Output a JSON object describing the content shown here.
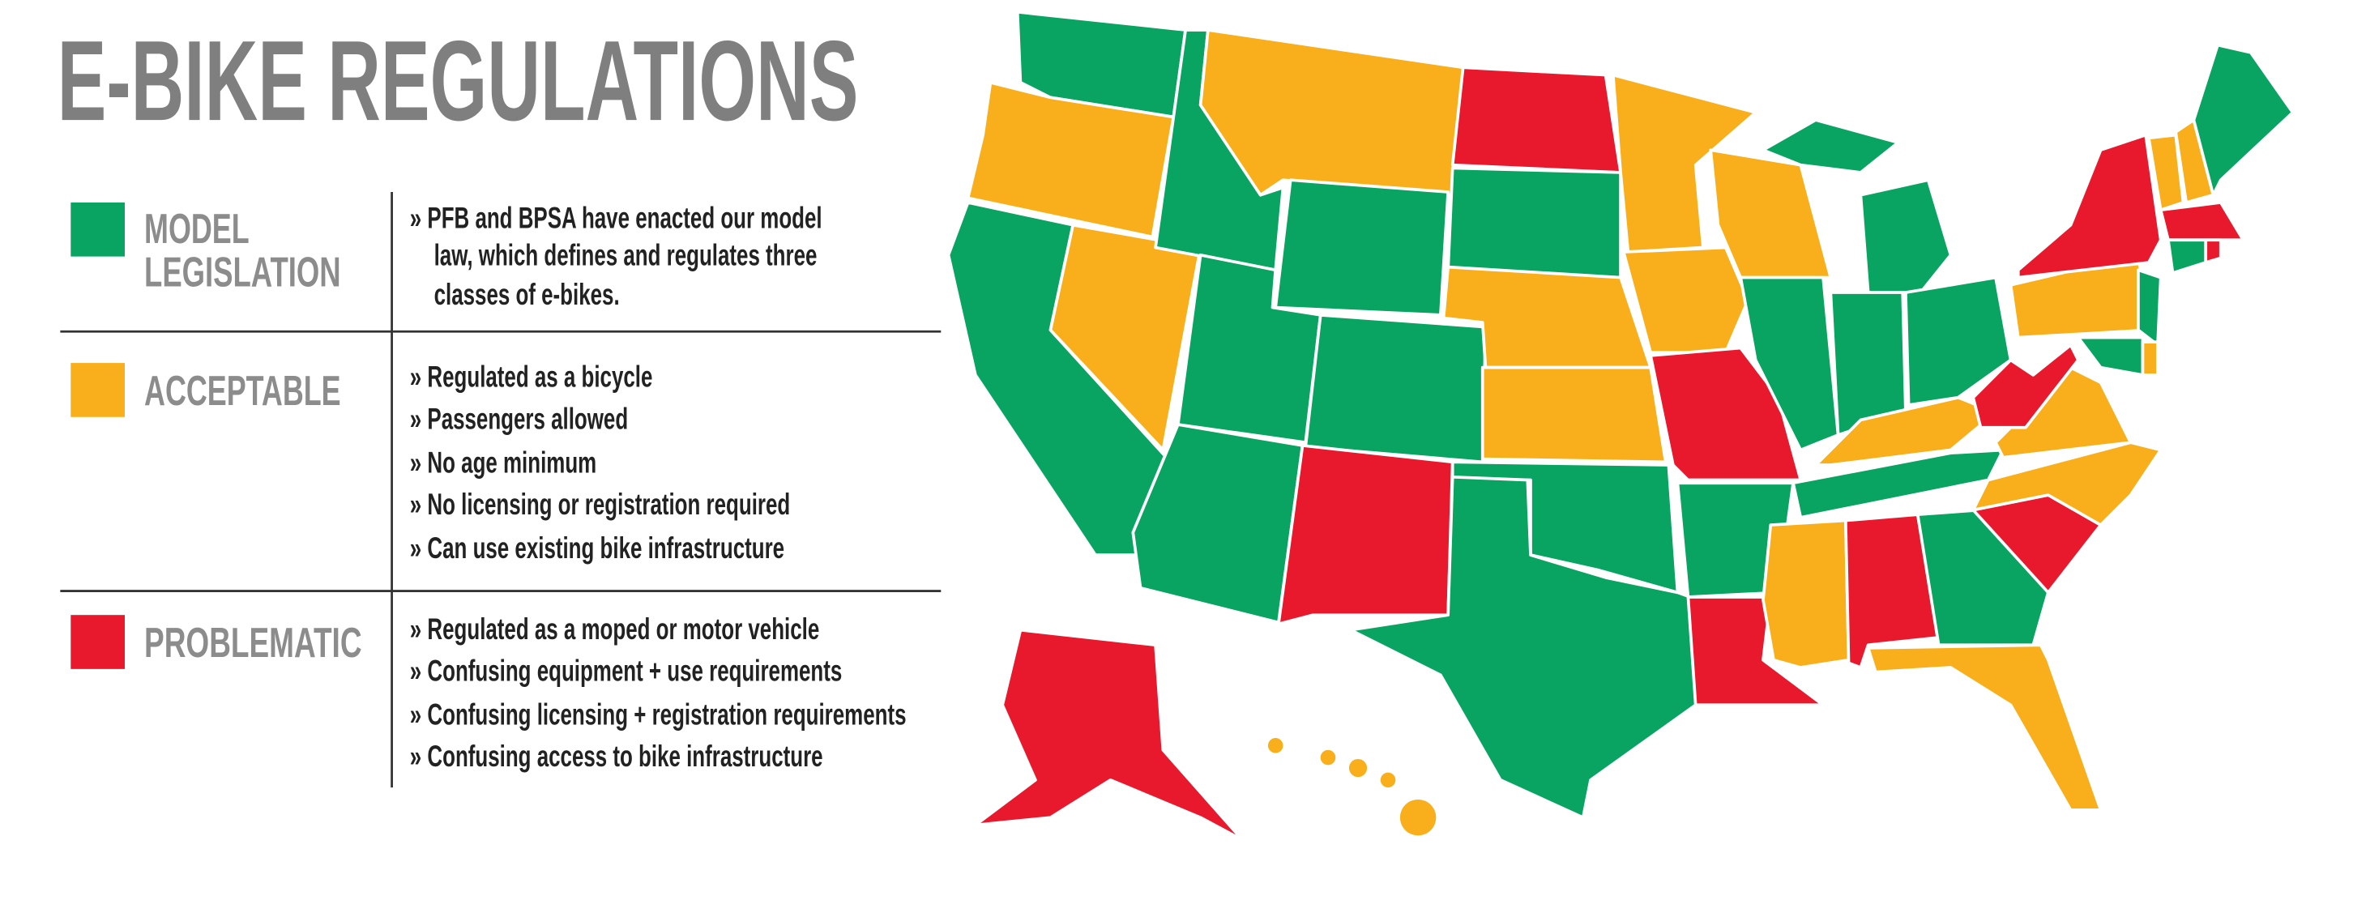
{
  "header": {
    "title": "E-BIKE REGULATIONS"
  },
  "legend": [
    {
      "label_lines": [
        "MODEL",
        "LEGISLATION"
      ],
      "color": "#09a462",
      "bullet_lines": [
        "» PFB and BPSA have enacted our model",
        "law, which defines and regulates three",
        "classes of e-bikes."
      ]
    },
    {
      "label_lines": [
        "ACCEPTABLE"
      ],
      "color": "#f9ae1b",
      "bullet_lines": [
        "» Regulated as a bicycle",
        "» Passengers allowed",
        "» No age minimum",
        "» No licensing or registration required",
        "» Can use existing bike infrastructure"
      ]
    },
    {
      "label_lines": [
        "PROBLEMATIC"
      ],
      "color": "#e8192c",
      "bullet_lines": [
        "» Regulated as a moped or motor vehicle",
        "» Confusing equipment + use requirements",
        "» Confusing licensing + registration requirements",
        "» Confusing access to bike infrastructure"
      ]
    }
  ]
}
